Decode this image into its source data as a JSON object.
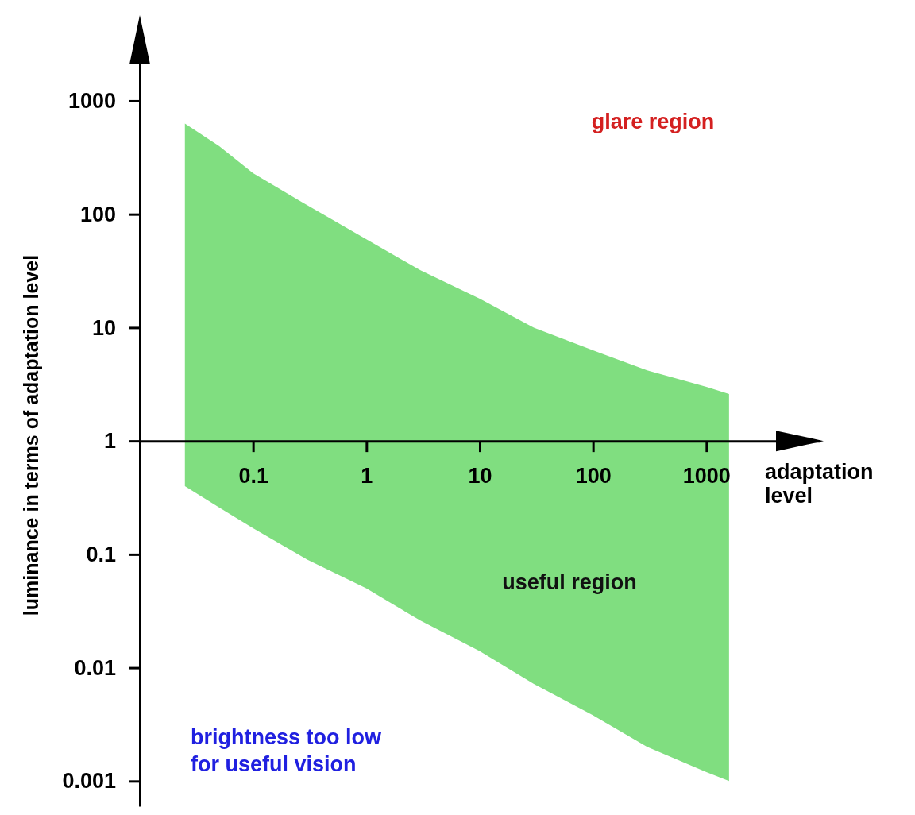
{
  "chart_data": {
    "type": "area",
    "xlabel": "adaptation level",
    "ylabel": "luminance in terms of adaptation level",
    "log": "xy",
    "xlim": [
      0.01,
      10000
    ],
    "ylim": [
      0.0006,
      4000
    ],
    "xticks": [
      0.1,
      1,
      10,
      100,
      1000
    ],
    "yticks": [
      0.001,
      0.01,
      0.1,
      1,
      10,
      100,
      1000
    ],
    "series": [
      {
        "color": "#80de80",
        "x": [
          0.025,
          0.05,
          0.1,
          0.3,
          1,
          3,
          10,
          30,
          100,
          300,
          1000,
          1585
        ],
        "values": [
          null,
          null,
          null,
          null,
          null,
          null,
          null,
          null,
          null,
          null,
          null,
          null
        ],
        "upper": [
          630,
          400,
          230,
          120,
          60,
          32,
          18,
          10,
          6.3,
          4.2,
          3.0,
          2.6
        ],
        "lower": [
          0.4,
          0.26,
          0.17,
          0.09,
          0.05,
          0.026,
          0.014,
          0.0072,
          0.0038,
          0.002,
          0.0012,
          0.001
        ]
      }
    ],
    "annotations": [
      "glare region",
      "useful region",
      "brightness too low\nfor useful vision"
    ]
  }
}
